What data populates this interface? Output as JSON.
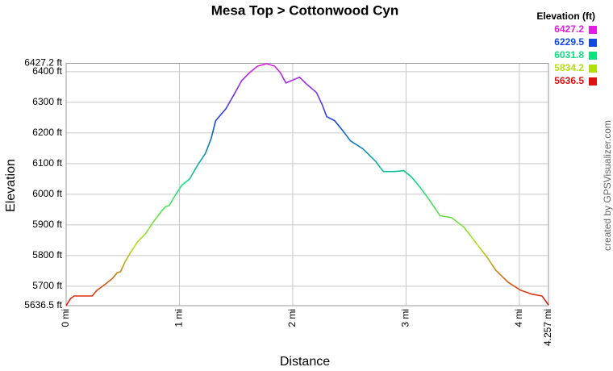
{
  "chart_data": {
    "type": "line",
    "title": "Mesa Top > Cottonwood Cyn",
    "x_label": "Distance",
    "y_label": "Elevation",
    "credit": "created by GPSVisualizer.com",
    "grid": true,
    "xlim": [
      0,
      4.257
    ],
    "ylim": [
      5636.5,
      6427.2
    ],
    "xticks": [
      {
        "value": 0,
        "label": "0 mi"
      },
      {
        "value": 1,
        "label": "1 mi"
      },
      {
        "value": 2,
        "label": "2 mi"
      },
      {
        "value": 3,
        "label": "3 mi"
      },
      {
        "value": 4,
        "label": "4 mi"
      },
      {
        "value": 4.257,
        "label": "4.257 mi"
      }
    ],
    "yticks": [
      {
        "value": 5636.5,
        "label": "5636.5 ft"
      },
      {
        "value": 5700,
        "label": "5700 ft"
      },
      {
        "value": 5800,
        "label": "5800 ft"
      },
      {
        "value": 5900,
        "label": "5900 ft"
      },
      {
        "value": 6000,
        "label": "6000 ft"
      },
      {
        "value": 6100,
        "label": "6100 ft"
      },
      {
        "value": 6200,
        "label": "6200 ft"
      },
      {
        "value": 6300,
        "label": "6300 ft"
      },
      {
        "value": 6400,
        "label": "6400 ft"
      },
      {
        "value": 6427.2,
        "label": "6427.2 ft"
      }
    ],
    "color_scale": {
      "title": "Elevation (ft)",
      "stops": [
        {
          "value": 6427.2,
          "color": "#e020e0"
        },
        {
          "value": 6229.5,
          "color": "#1048e0"
        },
        {
          "value": 6031.8,
          "color": "#10e080"
        },
        {
          "value": 5834.2,
          "color": "#b0e010"
        },
        {
          "value": 5636.5,
          "color": "#e01010"
        }
      ]
    },
    "series": [
      {
        "name": "Elevation",
        "x": [
          0,
          0.04,
          0.07,
          0.23,
          0.27,
          0.34,
          0.41,
          0.45,
          0.48,
          0.52,
          0.56,
          0.63,
          0.7,
          0.77,
          0.84,
          0.88,
          0.91,
          0.95,
          1.02,
          1.09,
          1.16,
          1.23,
          1.28,
          1.32,
          1.41,
          1.48,
          1.55,
          1.62,
          1.69,
          1.77,
          1.84,
          1.89,
          1.94,
          1.99,
          2.06,
          2.12,
          2.21,
          2.26,
          2.3,
          2.37,
          2.44,
          2.51,
          2.62,
          2.73,
          2.8,
          2.9,
          2.98,
          3.05,
          3.12,
          3.19,
          3.3,
          3.4,
          3.51,
          3.61,
          3.72,
          3.79,
          3.9,
          4.01,
          4.11,
          4.2,
          4.257
        ],
        "values": [
          5636.5,
          5660,
          5668,
          5668,
          5686,
          5705,
          5726,
          5744,
          5747,
          5779,
          5805,
          5845,
          5871,
          5910,
          5944,
          5960,
          5963,
          5989,
          6029,
          6050,
          6095,
          6134,
          6182,
          6240,
          6279,
          6324,
          6371,
          6397,
          6418,
          6426,
          6418,
          6397,
          6363,
          6371,
          6382,
          6360,
          6332,
          6292,
          6253,
          6240,
          6208,
          6174,
          6148,
          6108,
          6074,
          6074,
          6077,
          6056,
          6024,
          5990,
          5930,
          5924,
          5893,
          5845,
          5792,
          5753,
          5713,
          5687,
          5674,
          5668,
          5639
        ]
      }
    ]
  }
}
